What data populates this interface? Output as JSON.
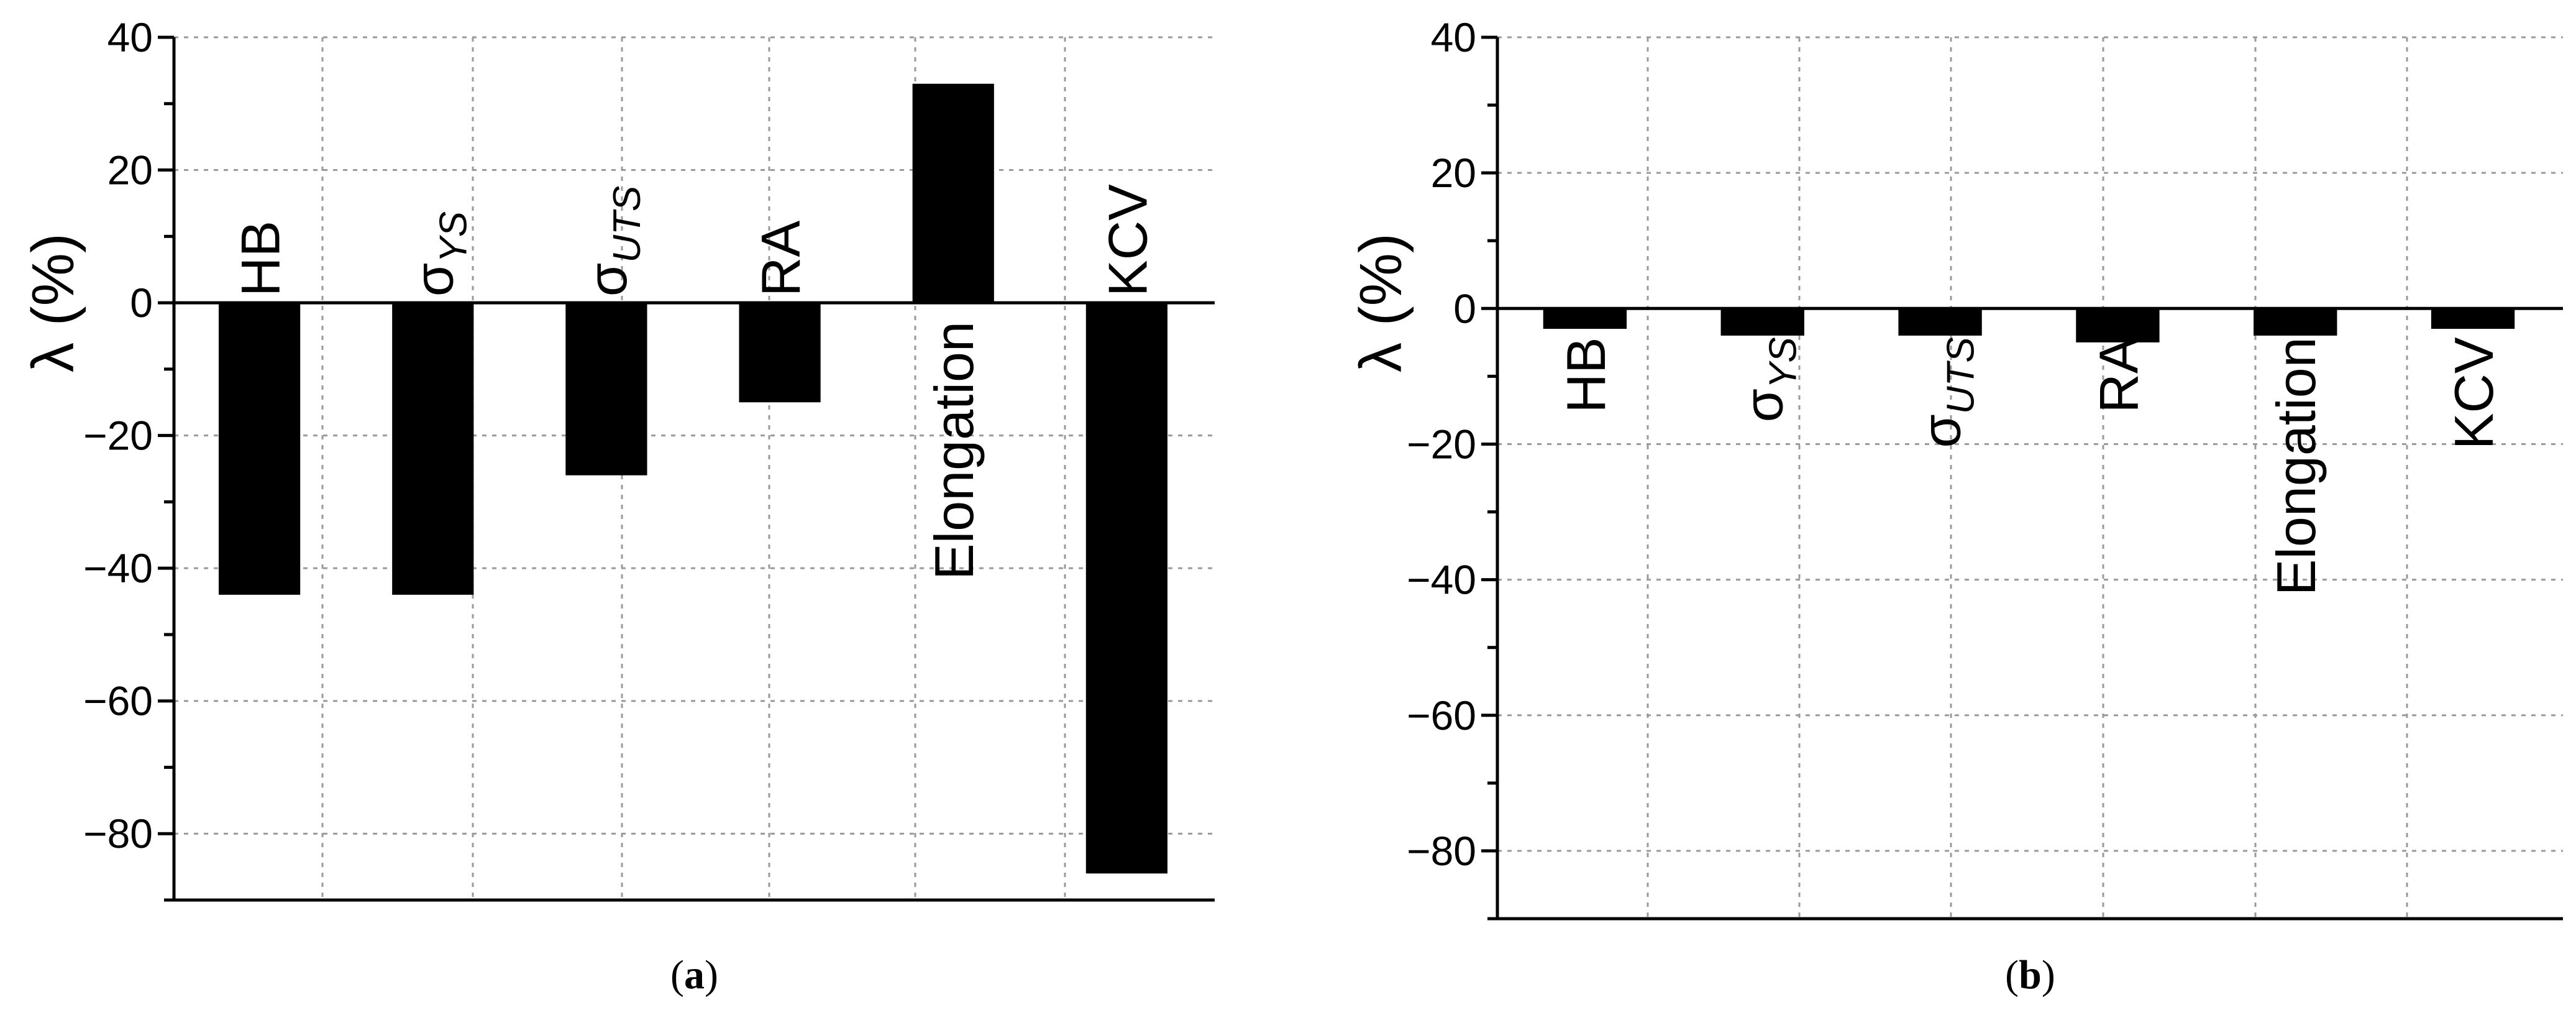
{
  "chart_data": [
    {
      "type": "bar",
      "panel_label": "a",
      "ylabel": "λ (%)",
      "ylim": [
        -90,
        40
      ],
      "yticks": [
        40,
        20,
        0,
        -20,
        -40,
        -60,
        -80
      ],
      "ytick_labels": [
        "40",
        "20",
        "0",
        "−20",
        "−40",
        "−60",
        "−80"
      ],
      "grid": true,
      "categories": [
        {
          "base": "HB",
          "sub": ""
        },
        {
          "base": "σ",
          "sub": "YS"
        },
        {
          "base": "σ",
          "sub": "UTS"
        },
        {
          "base": "RA",
          "sub": ""
        },
        {
          "base": "Elongation",
          "sub": ""
        },
        {
          "base": "KCV",
          "sub": ""
        }
      ],
      "values": [
        -44,
        -44,
        -26,
        -15,
        33,
        -86
      ]
    },
    {
      "type": "bar",
      "panel_label": "b",
      "ylabel": "λ (%)",
      "ylim": [
        -90,
        40
      ],
      "yticks": [
        40,
        20,
        0,
        -20,
        -40,
        -60,
        -80
      ],
      "ytick_labels": [
        "40",
        "20",
        "0",
        "−20",
        "−40",
        "−60",
        "−80"
      ],
      "grid": true,
      "categories": [
        {
          "base": "HB",
          "sub": ""
        },
        {
          "base": "σ",
          "sub": "YS"
        },
        {
          "base": "σ",
          "sub": "UTS"
        },
        {
          "base": "RA",
          "sub": ""
        },
        {
          "base": "Elongation",
          "sub": ""
        },
        {
          "base": "KCV",
          "sub": ""
        }
      ],
      "values": [
        -3,
        -4,
        -4,
        -5,
        -4,
        -3
      ]
    }
  ]
}
